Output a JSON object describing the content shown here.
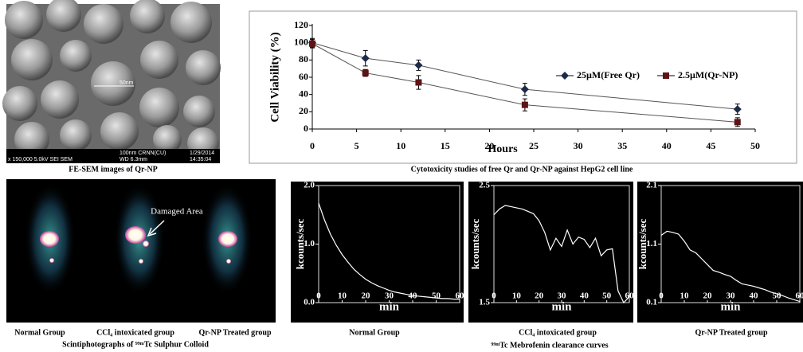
{
  "sem_panel": {
    "caption": "FE-SEM images of Qr-NP",
    "scale_label": "50nm",
    "info_left": "x 150,000   5.0kV   SEI   SEM",
    "info_wd": "WD 6.3mm",
    "info_scale": "100nm  CRNN(CU)",
    "info_date": "1/29/2014",
    "info_time": "14:35:04"
  },
  "scintigraphy_panel": {
    "annotation": "Damaged Area",
    "labels": [
      "Normal Group",
      "CCl₄  intoxicated group",
      "Qr-NP Treated group"
    ],
    "caption": "Scintiphotographs of ⁹⁹ᵐTc Sulphur Colloid"
  },
  "clearance_caption": "⁹⁹ᵐTc Mebrofenin clearance curves",
  "chart_data": [
    {
      "type": "line",
      "title": "Cytotoxicity studies of free Qr and Qr-NP against HepG2 cell line",
      "y_label": "Cell Viability (%)",
      "x_label": "Hours",
      "x": [
        0,
        6,
        12,
        24,
        48
      ],
      "series": [
        {
          "name": "25µM(Free Qr)",
          "color": "#1c2a48",
          "marker": "diamond",
          "values": [
            100,
            82,
            74,
            46,
            23
          ],
          "errors": [
            5,
            9,
            6,
            7,
            6
          ]
        },
        {
          "name": "2.5µM(Qr-NP)",
          "color": "#5e1414",
          "marker": "square",
          "values": [
            99,
            65,
            54,
            28,
            8
          ],
          "errors": [
            5,
            4,
            8,
            7,
            5
          ]
        }
      ],
      "xlim": [
        0,
        50
      ],
      "xticks": [
        0,
        5,
        10,
        15,
        20,
        25,
        30,
        35,
        40,
        45,
        50
      ],
      "ylim": [
        0,
        120
      ],
      "yticks": [
        0,
        20,
        40,
        60,
        80,
        100,
        120
      ],
      "legend": "center-right",
      "background": "#ffffff"
    },
    {
      "type": "line",
      "title": "Normal Group",
      "y_label": "kcounts/sec",
      "x_label": "min",
      "x": [
        0,
        2.5,
        5,
        7.5,
        10,
        12.5,
        15,
        17.5,
        20,
        22.5,
        25,
        27.5,
        30,
        32.5,
        35,
        37.5,
        40,
        42.5,
        45,
        47.5,
        50,
        52.5,
        55,
        57.5,
        60
      ],
      "series": [
        {
          "color": "#ffffff",
          "values": [
            1.7,
            1.41,
            1.17,
            0.98,
            0.82,
            0.69,
            0.57,
            0.48,
            0.4,
            0.34,
            0.29,
            0.25,
            0.21,
            0.18,
            0.16,
            0.14,
            0.12,
            0.11,
            0.1,
            0.09,
            0.08,
            0.07,
            0.07,
            0.06,
            0.06
          ]
        }
      ],
      "xlim": [
        0,
        60
      ],
      "xticks": [
        0,
        10,
        20,
        30,
        40,
        50,
        60
      ],
      "ylim": [
        0,
        2
      ],
      "yticks": [
        {
          "value": 0,
          "label": "0.0"
        },
        {
          "value": 1,
          "label": "1.0"
        },
        {
          "value": 2,
          "label": "2.0"
        }
      ],
      "background": "#000000"
    },
    {
      "type": "line",
      "title": "CCl₄  intoxicated group",
      "y_label": "kcounts/sec",
      "x_label": "min",
      "x": [
        0,
        2.5,
        5,
        7.5,
        10,
        12.5,
        15,
        17.5,
        20,
        22.5,
        25,
        27.5,
        30,
        32.5,
        35,
        37.5,
        40,
        42.5,
        45,
        47.5,
        50,
        52.5,
        55,
        57.5,
        60
      ],
      "series": [
        {
          "color": "#ffffff",
          "values": [
            2.25,
            2.3,
            2.33,
            2.32,
            2.31,
            2.3,
            2.28,
            2.26,
            2.2,
            2.1,
            1.95,
            2.05,
            1.98,
            2.12,
            2.0,
            2.06,
            2.04,
            1.97,
            2.05,
            1.9,
            1.95,
            1.96,
            1.6,
            1.5,
            1.55
          ]
        }
      ],
      "xlim": [
        0,
        60
      ],
      "xticks": [
        0,
        10,
        20,
        30,
        40,
        50,
        60
      ],
      "ylim": [
        1.5,
        2.5
      ],
      "yticks": [
        1.5,
        2.5
      ],
      "background": "#000000"
    },
    {
      "type": "line",
      "title": "Qr-NP Treated group",
      "y_label": "kcounts/sec",
      "x_label": "min",
      "x": [
        0,
        2.5,
        5,
        7.5,
        10,
        12.5,
        15,
        17.5,
        20,
        22.5,
        25,
        27.5,
        30,
        32.5,
        35,
        37.5,
        40,
        42.5,
        45,
        47.5,
        50,
        52.5,
        55,
        57.5,
        60
      ],
      "series": [
        {
          "color": "#ffffff",
          "values": [
            1.25,
            1.32,
            1.3,
            1.27,
            1.15,
            1.0,
            0.95,
            0.85,
            0.75,
            0.65,
            0.62,
            0.58,
            0.55,
            0.48,
            0.42,
            0.4,
            0.38,
            0.35,
            0.32,
            0.28,
            0.25,
            0.22,
            0.18,
            0.15,
            0.12
          ]
        }
      ],
      "xlim": [
        0,
        60
      ],
      "xticks": [
        0,
        10,
        20,
        30,
        40,
        50,
        60
      ],
      "ylim": [
        0.1,
        2.1
      ],
      "yticks": [
        0.1,
        1.1,
        2.1
      ],
      "background": "#000000"
    }
  ]
}
